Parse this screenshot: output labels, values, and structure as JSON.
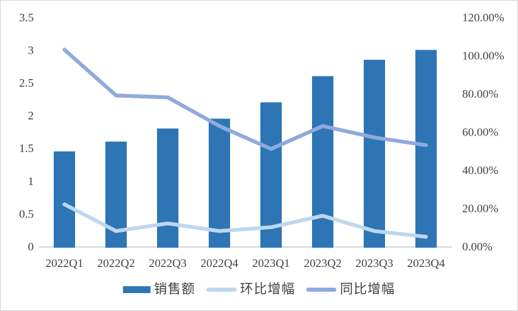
{
  "chart_data": {
    "type": "bar+line-combo",
    "categories": [
      "2022Q1",
      "2022Q2",
      "2022Q3",
      "2022Q4",
      "2023Q1",
      "2023Q2",
      "2023Q3",
      "2023Q4"
    ],
    "series": [
      {
        "key": "sales",
        "name": "销售额",
        "type": "bar",
        "axis": "left",
        "color": "#2E75B6",
        "values": [
          1.45,
          1.6,
          1.8,
          1.95,
          2.2,
          2.6,
          2.85,
          3.0
        ]
      },
      {
        "key": "qoq_growth",
        "name": "环比增幅",
        "type": "line",
        "axis": "right",
        "color": "#BDD7EE",
        "unit": "%",
        "values": [
          22,
          8,
          12,
          8,
          10,
          16,
          8,
          5
        ]
      },
      {
        "key": "yoy_growth",
        "name": "同比增幅",
        "type": "line",
        "axis": "right",
        "color": "#8FAADC",
        "unit": "%",
        "values": [
          103,
          79,
          78,
          63,
          51,
          63,
          57,
          53
        ]
      }
    ],
    "left_axis": {
      "min": 0,
      "max": 3.5,
      "ticks": [
        "0",
        "0.5",
        "1",
        "1.5",
        "2",
        "2.5",
        "3",
        "3.5"
      ]
    },
    "right_axis": {
      "min_percent": 0,
      "max_percent": 120,
      "ticks": [
        "0.00%",
        "20.00%",
        "40.00%",
        "60.00%",
        "80.00%",
        "100.00%",
        "120.00%"
      ]
    },
    "grid": false,
    "legend_position": "bottom",
    "colors": {
      "axis_line": "#D9D9D9",
      "tick_text": "#3F3F3F",
      "legend_text": "#404040",
      "background": "#FFFFFF",
      "frame_border": "#D9D9D9"
    }
  }
}
